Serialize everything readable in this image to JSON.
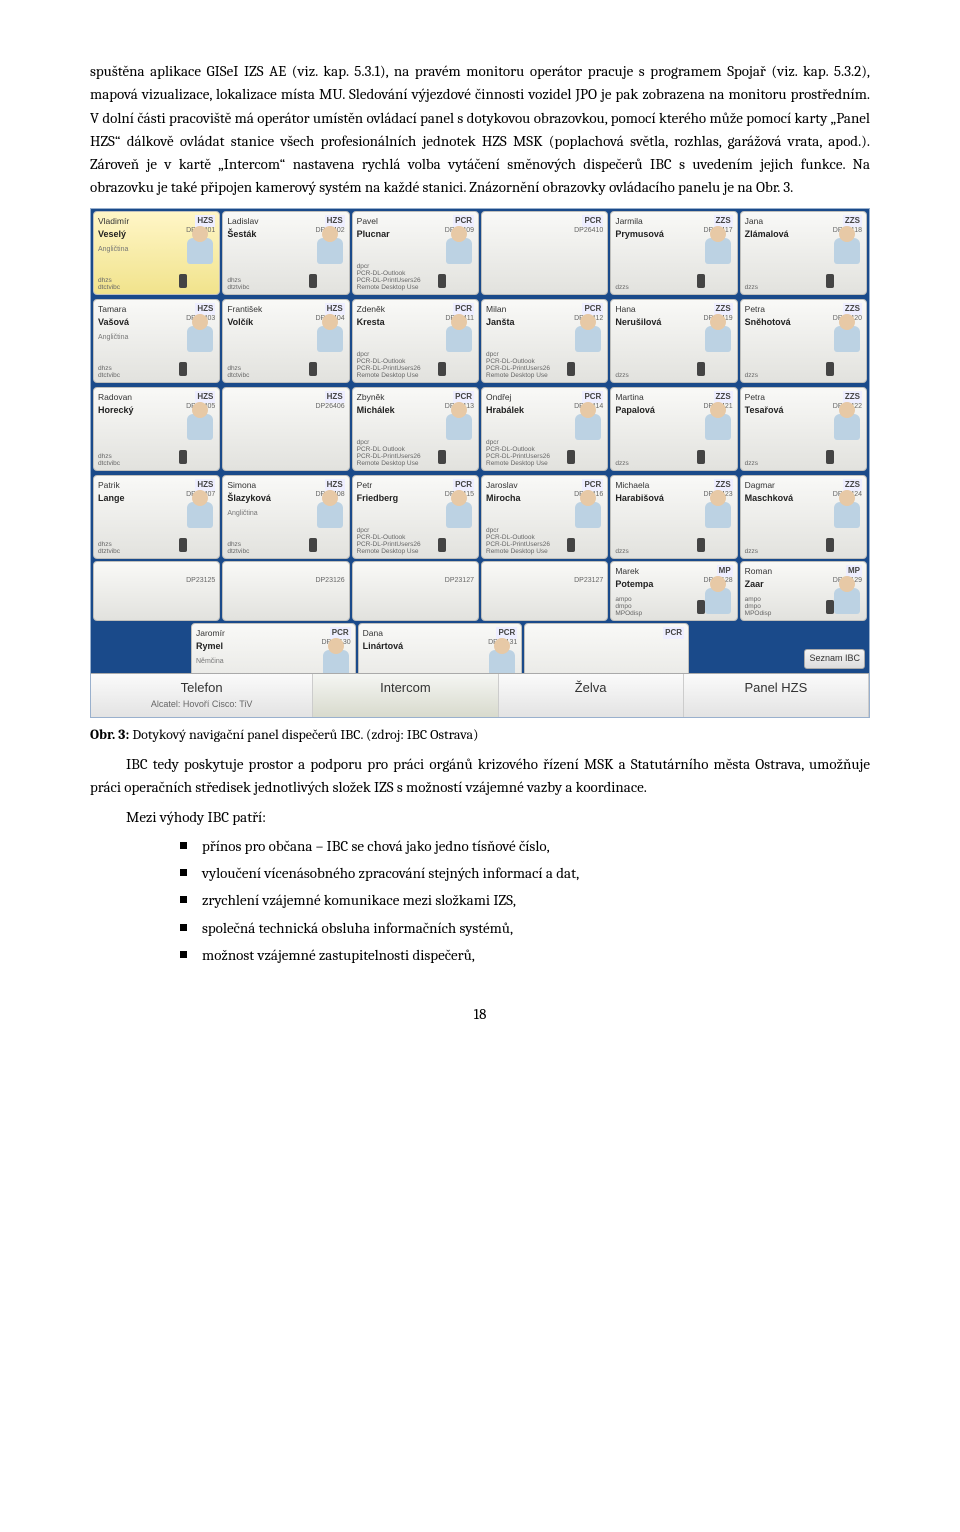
{
  "paragraphs": {
    "p1": "spuštěna aplikace GISeI IZS AE (viz. kap. 5.3.1), na pravém monitoru operátor pracuje s programem Spojař (viz. kap. 5.3.2), mapová vizualizace, lokalizace místa MU. Sledování výjezdové činnosti vozidel JPO je pak zobrazena na monitoru prostředním. V dolní části pracoviště má operátor umístěn ovládací panel s dotykovou obrazovkou, pomocí kterého může pomocí karty „Panel HZS“ dálkově ovládat stanice všech profesionálních jednotek HZS MSK (poplachová světla, rozhlas, garážová vrata, apod.). Zároveň je v kartě „Intercom“ nastavena rychlá volba vytáčení směnových dispečerů IBC s uvedením jejich funkce. Na obrazovku je také připojen kamerový systém na každé stanici. Znázornění obrazovky ovládacího panelu je na Obr. 3.",
    "caption_bold": "Obr. 3:",
    "caption_rest": " Dotykový navigační panel dispečerů IBC. (zdroj: IBC Ostrava)",
    "p2": "IBC tedy poskytuje prostor a podporu pro práci orgánů krizového řízení MSK a Statutárního města Ostrava, umožňuje práci operačních středisek jednotlivých složek IZS s možností vzájemné vazby a koordinace.",
    "p3": "Mezi výhody IBC patří:"
  },
  "bullets": [
    "přínos pro občana – IBC se chová jako jedno tísňové číslo,",
    "vyloučení vícenásobného zpracování stejných informací a dat,",
    "zrychlení vzájemné komunikace mezi složkami IZS,",
    "společná technická obsluha informačních systémů,",
    "možnost vzájemné zastupitelnosti dispečerů,"
  ],
  "page_number": "18",
  "screenshot": {
    "background": "#1a4a8a",
    "tabs": {
      "t1": "Telefon",
      "t1sub": "Alcatel: Hovoří  Cisco: TiV",
      "t2": "Intercom",
      "t3": "Želva",
      "t4": "Panel HZS"
    },
    "button_seznam": "Seznam IBC",
    "row1": [
      {
        "first": "Vladimír",
        "last": "Veselý",
        "badge": "HZS",
        "dp": "DP26401",
        "sub": "Angličtina",
        "meta": "dhzs\ndtctvibc",
        "sel": true
      },
      {
        "first": "Ladislav",
        "last": "Šesták",
        "badge": "HZS",
        "dp": "DP26402",
        "meta": "dhzs\ndtztvibc"
      },
      {
        "first": "Pavel",
        "last": "Plucnar",
        "badge": "PCR",
        "dp": "DP26409",
        "meta": "dpcr\nPCR-DL-Outlook\nPCR-DL-PrintUsers26\nRemote Desktop Use"
      },
      {
        "first": "",
        "last": "",
        "badge": "PCR",
        "dp": "DP26410",
        "meta": ""
      },
      {
        "first": "Jarmila",
        "last": "Prymusová",
        "badge": "ZZS",
        "dp": "DP26417",
        "meta": "dzzs"
      },
      {
        "first": "Jana",
        "last": "Zlámalová",
        "badge": "ZZS",
        "dp": "DP26418",
        "meta": "dzzs"
      }
    ],
    "row2": [
      {
        "first": "Tamara",
        "last": "Vašová",
        "badge": "HZS",
        "dp": "DP26403",
        "sub": "Angličtina",
        "meta": "dhzs\ndtctvibc"
      },
      {
        "first": "František",
        "last": "Volčík",
        "badge": "HZS",
        "dp": "DP26404",
        "meta": "dhzs\ndtctvibc"
      },
      {
        "first": "Zdeněk",
        "last": "Kresta",
        "badge": "PCR",
        "dp": "DP26411",
        "meta": "dpcr\nPCR-DL-Outlook\nPCR-DL-PrintUsers26\nRemote Desktop Use"
      },
      {
        "first": "Milan",
        "last": "Janšta",
        "badge": "PCR",
        "dp": "DP26412",
        "meta": "dpcr\nPCR-DL-Outlook\nPCR-DL-PrintUsers26\nRemote Desktop Use"
      },
      {
        "first": "Hana",
        "last": "Nerušilová",
        "badge": "ZZS",
        "dp": "DP26419",
        "meta": "dzzs"
      },
      {
        "first": "Petra",
        "last": "Sněhotová",
        "badge": "ZZS",
        "dp": "DP26420",
        "meta": "dzzs"
      }
    ],
    "row3": [
      {
        "first": "Radovan",
        "last": "Horecký",
        "badge": "HZS",
        "dp": "DP26405",
        "meta": "dhzs\ndtctvibc"
      },
      {
        "first": "",
        "last": "",
        "badge": "HZS",
        "dp": "DP26406",
        "meta": ""
      },
      {
        "first": "Zbyněk",
        "last": "Michálek",
        "badge": "PCR",
        "dp": "DP26413",
        "meta": "dpcr\nPCR-DL Outlook\nPCR-DL-PrintUsers26\nRemote Desktop Use"
      },
      {
        "first": "Ondřej",
        "last": "Hrabálek",
        "badge": "PCR",
        "dp": "DP26414",
        "meta": "dpcr\nPCR-DL-Outlook\nPCR-DL-PrintUsers26\nRemote Desktop Use"
      },
      {
        "first": "Martina",
        "last": "Papalová",
        "badge": "ZZS",
        "dp": "DP26421",
        "meta": "dzzs"
      },
      {
        "first": "Petra",
        "last": "Tesařová",
        "badge": "ZZS",
        "dp": "DP26422",
        "meta": "dzzs"
      }
    ],
    "row4": [
      {
        "first": "Patrik",
        "last": "Lange",
        "badge": "HZS",
        "dp": "DP26407",
        "meta": "dhzs\ndtztvibc"
      },
      {
        "first": "Simona",
        "last": "Šlazyková",
        "badge": "HZS",
        "dp": "DP26408",
        "sub": "Angličtina",
        "meta": "dhzs\ndtztvibc"
      },
      {
        "first": "Petr",
        "last": "Friedberg",
        "badge": "PCR",
        "dp": "DP26415",
        "meta": "dpcr\nPCR-DL-Outlook\nPCR-DL-PrintUsers26\nRemote Desktop Use"
      },
      {
        "first": "Jaroslav",
        "last": "Mirocha",
        "badge": "PCR",
        "dp": "DP26416",
        "meta": "dpcr\nPCR-DL-Outlook\nPCR-DL-PrintUsers26\nRemote Desktop Use"
      },
      {
        "first": "Michaela",
        "last": "Harabišová",
        "badge": "ZZS",
        "dp": "DP26423",
        "meta": "dzzs"
      },
      {
        "first": "Dagmar",
        "last": "Maschková",
        "badge": "ZZS",
        "dp": "DP26424",
        "meta": "dzzs"
      }
    ],
    "row5": [
      {
        "first": "",
        "last": "",
        "badge": "",
        "dp": "DP23125",
        "meta": "",
        "empty": true,
        "med": true
      },
      {
        "first": "",
        "last": "",
        "badge": "",
        "dp": "DP23126",
        "meta": "",
        "empty": true,
        "med": true
      },
      {
        "first": "",
        "last": "",
        "badge": "",
        "dp": "DP23127",
        "meta": "",
        "empty": true,
        "med": true
      },
      {
        "first": "",
        "last": "",
        "badge": "",
        "dp": "DP23127",
        "meta": "",
        "empty": true,
        "med": true
      },
      {
        "first": "Marek",
        "last": "Potempa",
        "badge": "MP",
        "dp": "DP23128",
        "meta": "ampo\ndmpo\nMPOdisp",
        "med": true
      },
      {
        "first": "Roman",
        "last": "Zaar",
        "badge": "MP",
        "dp": "DP23129",
        "meta": "ampo\ndmpo\nMPOdisp",
        "med": true
      }
    ],
    "row6": [
      {
        "first": "Jaromír",
        "last": "Rymel",
        "badge": "PCR",
        "dp": "DP23130",
        "sub": "Němčina",
        "meta": "dpcr\nPCR-DL-Outlook\nPCR-DL-PrintUsers26\nRemote Desktop Use"
      },
      {
        "first": "Dana",
        "last": "Linártová",
        "badge": "PCR",
        "dp": "DP23131",
        "meta": "dpcr\nPCR-DL-Outlook\nPCR-DL-PrintUsers26\nRemote Desktop Use"
      },
      {
        "first": "",
        "last": "",
        "badge": "PCR",
        "dp": "",
        "meta": ""
      }
    ]
  }
}
